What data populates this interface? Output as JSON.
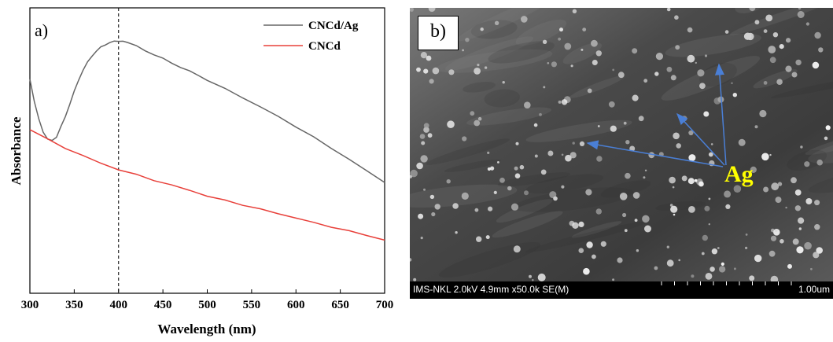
{
  "panel_a": {
    "label": "a)",
    "chart_data": {
      "type": "line",
      "xlabel": "Wavelength (nm)",
      "ylabel": "Absorbance",
      "xlim": [
        300,
        700
      ],
      "ylim": [
        0,
        1
      ],
      "x_ticks": [
        300,
        350,
        400,
        450,
        500,
        550,
        600,
        650,
        700
      ],
      "y_tick_labels": "none",
      "grid": false,
      "legend_position": "top-right",
      "annotations": [
        {
          "type": "vertical-dashed-line",
          "x": 400
        }
      ],
      "series": [
        {
          "name": "CNCd/Ag",
          "color": "#666666",
          "x": [
            300,
            305,
            310,
            315,
            320,
            325,
            330,
            335,
            340,
            345,
            350,
            355,
            360,
            365,
            370,
            375,
            380,
            385,
            390,
            395,
            400,
            405,
            410,
            420,
            430,
            440,
            450,
            460,
            470,
            480,
            490,
            500,
            520,
            540,
            560,
            580,
            600,
            620,
            640,
            660,
            680,
            700
          ],
          "values": [
            0.85,
            0.76,
            0.69,
            0.64,
            0.61,
            0.605,
            0.62,
            0.66,
            0.7,
            0.75,
            0.8,
            0.845,
            0.885,
            0.915,
            0.94,
            0.96,
            0.975,
            0.985,
            0.993,
            0.998,
            1.0,
            0.998,
            0.993,
            0.98,
            0.962,
            0.945,
            0.93,
            0.912,
            0.896,
            0.88,
            0.862,
            0.845,
            0.81,
            0.775,
            0.738,
            0.7,
            0.66,
            0.618,
            0.575,
            0.53,
            0.485,
            0.44
          ]
        },
        {
          "name": "CNCd",
          "color": "#e8403a",
          "x": [
            300,
            320,
            340,
            360,
            380,
            400,
            420,
            440,
            460,
            480,
            500,
            520,
            540,
            560,
            580,
            600,
            620,
            640,
            660,
            680,
            700
          ],
          "values": [
            0.65,
            0.61,
            0.575,
            0.545,
            0.515,
            0.49,
            0.47,
            0.448,
            0.428,
            0.408,
            0.385,
            0.368,
            0.35,
            0.333,
            0.316,
            0.298,
            0.28,
            0.263,
            0.246,
            0.23,
            0.21
          ]
        }
      ]
    }
  },
  "panel_b": {
    "label": "b)",
    "annotation": "Ag",
    "info_text": "IMS-NKL 2.0kV 4.9mm x50.0k SE(M)",
    "scale_text": "1.00um",
    "arrow_color": "#4a7fd6",
    "annotation_color": "#ffff00"
  }
}
